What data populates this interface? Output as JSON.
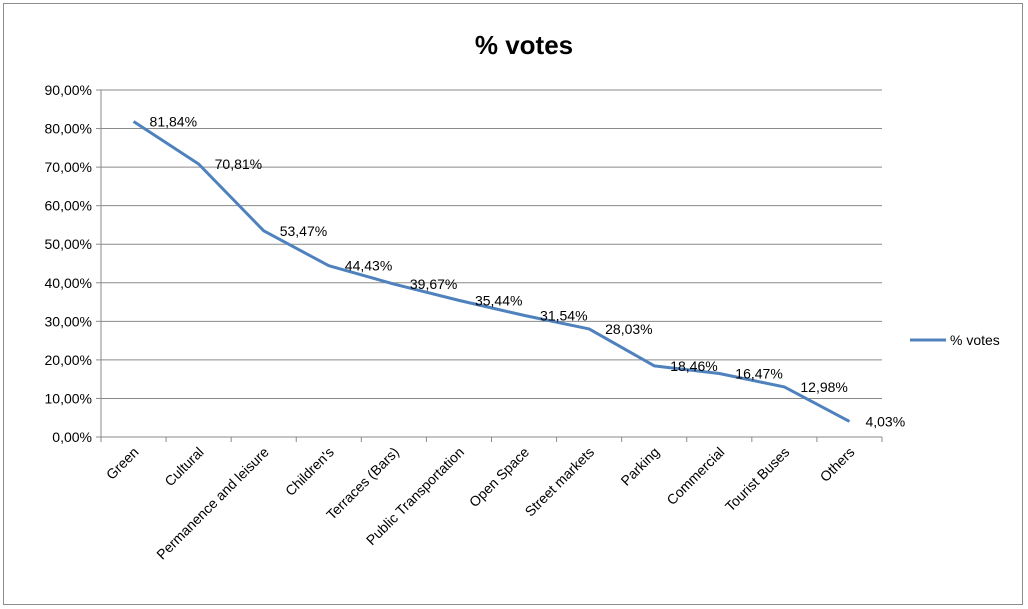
{
  "chart_data": {
    "type": "line",
    "title": "% votes",
    "xlabel": "",
    "ylabel": "",
    "categories": [
      "Green",
      "Cultural",
      "Permanence and leisure",
      "Children's",
      "Terraces (Bars)",
      "Public Transportation",
      "Open Space",
      "Street markets",
      "Parking",
      "Commercial",
      "Tourist Buses",
      "Others"
    ],
    "series": [
      {
        "name": "% votes",
        "values": [
          81.84,
          70.81,
          53.47,
          44.43,
          39.67,
          35.44,
          31.54,
          28.03,
          18.46,
          16.47,
          12.98,
          4.03
        ],
        "labels": [
          "81,84%",
          "70,81%",
          "53,47%",
          "44,43%",
          "39,67%",
          "35,44%",
          "31,54%",
          "28,03%",
          "18,46%",
          "16,47%",
          "12,98%",
          "4,03%"
        ],
        "color": "#4f81bd"
      }
    ],
    "ylim": [
      0,
      90
    ],
    "yticks": [
      "0,00%",
      "10,00%",
      "20,00%",
      "30,00%",
      "40,00%",
      "50,00%",
      "60,00%",
      "70,00%",
      "80,00%",
      "90,00%"
    ],
    "grid": true,
    "legend": "right"
  }
}
